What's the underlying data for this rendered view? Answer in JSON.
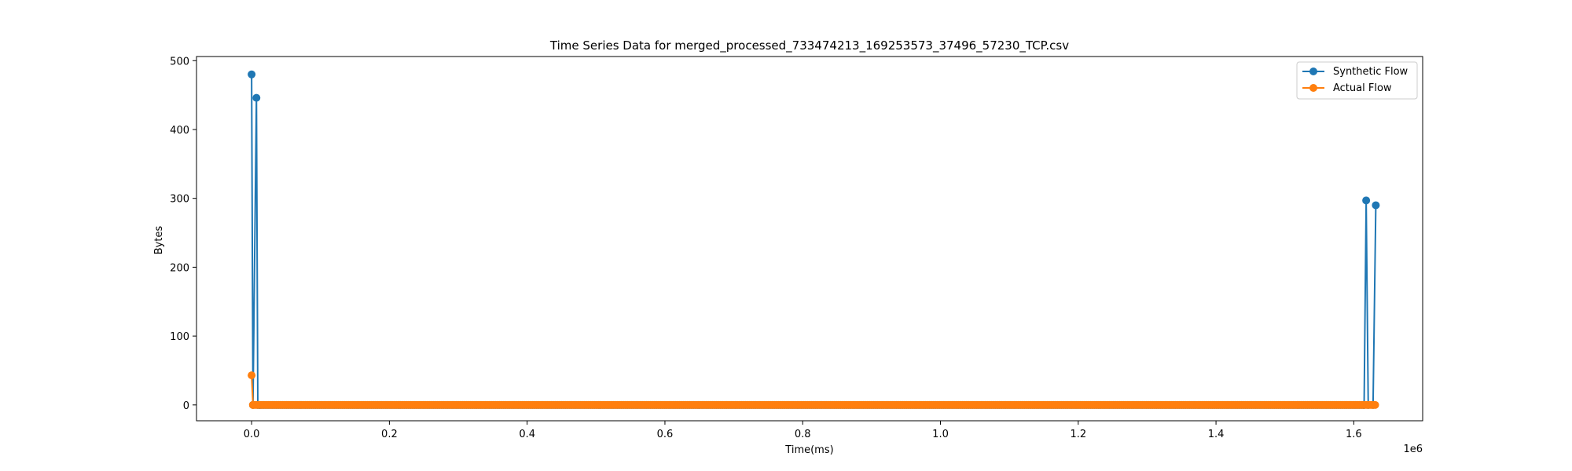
{
  "chart_data": {
    "type": "line",
    "title": "Time Series Data for merged_processed_733474213_169253573_37496_57230_TCP.csv",
    "xlabel": "Time(ms)",
    "ylabel": "Bytes",
    "x_offset_label": "1e6",
    "xlim": [
      -0.08,
      1.7
    ],
    "ylim": [
      -23,
      506
    ],
    "x_ticks": [
      0.0,
      0.2,
      0.4,
      0.6,
      0.8,
      1.0,
      1.2,
      1.4,
      1.6
    ],
    "x_tick_labels": [
      "0.0",
      "0.2",
      "0.4",
      "0.6",
      "0.8",
      "1.0",
      "1.2",
      "1.4",
      "1.6"
    ],
    "y_ticks": [
      0,
      100,
      200,
      300,
      400,
      500
    ],
    "y_tick_labels": [
      "0",
      "100",
      "200",
      "300",
      "400",
      "500"
    ],
    "grid": false,
    "legend_position": "top-right",
    "series": [
      {
        "name": "Synthetic Flow",
        "color": "#1f77b4",
        "points": [
          [
            0.0,
            480
          ],
          [
            0.002,
            0
          ],
          [
            0.007,
            446
          ],
          [
            0.009,
            0
          ],
          [
            0.012,
            0
          ],
          [
            1.615,
            0
          ],
          [
            1.618,
            297
          ],
          [
            1.621,
            0
          ],
          [
            1.628,
            0
          ],
          [
            1.632,
            290
          ]
        ],
        "zero_run": {
          "from": 0.012,
          "to": 1.615,
          "step": 0.003,
          "value": 0
        }
      },
      {
        "name": "Actual Flow",
        "color": "#ff7f0e",
        "points": [
          [
            0.0,
            43
          ],
          [
            0.002,
            0
          ]
        ],
        "zero_run": {
          "from": 0.002,
          "to": 1.633,
          "step": 0.003,
          "value": 0
        }
      }
    ]
  }
}
